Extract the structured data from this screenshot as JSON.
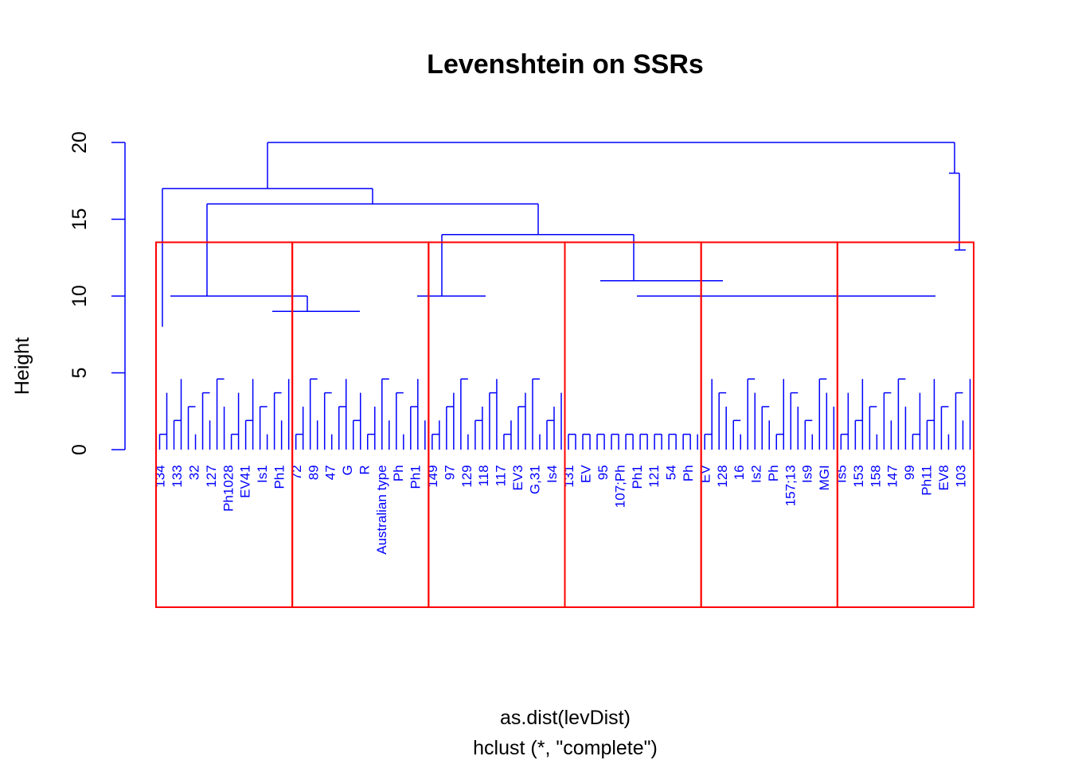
{
  "chart_data": {
    "type": "dendrogram",
    "title": "Levenshtein on SSRs",
    "ylabel": "Height",
    "xlabel": "as.dist(levDist)",
    "sub": "hclust (*, \"complete\")",
    "ylim": [
      0,
      20
    ],
    "yticks": [
      0,
      5,
      10,
      15,
      20
    ],
    "ytick_labels": [
      "0",
      "5",
      "10",
      "15",
      "20"
    ],
    "line_color": "#0000ff",
    "rect_color": "#ff0000",
    "cut_height": 13.5,
    "merges": [
      {
        "id": "root",
        "h": 20,
        "from": 1,
        "to": 7
      },
      {
        "id": "L1",
        "h": 17,
        "from": 1,
        "to": 2
      },
      {
        "id": "R1",
        "h": 18,
        "from": 7,
        "to": 7
      },
      {
        "id": "M1",
        "h": 16,
        "from": 2,
        "to": 3
      },
      {
        "id": "M2",
        "h": 14,
        "from": 3,
        "to": 4
      },
      {
        "id": "M3",
        "h": 10,
        "from": 2,
        "to": 3
      },
      {
        "id": "M4",
        "h": 11,
        "from": 4,
        "to": 5
      },
      {
        "id": "M5",
        "h": 10,
        "from": 3,
        "to": 4
      }
    ],
    "clusters": [
      {
        "name": "c1",
        "from": 1,
        "to": 2
      },
      {
        "name": "c2",
        "from": 2,
        "to": 3
      },
      {
        "name": "c3",
        "from": 3,
        "to": 4
      },
      {
        "name": "c4",
        "from": 4,
        "to": 5
      },
      {
        "name": "c5",
        "from": 5,
        "to": 6
      },
      {
        "name": "c6",
        "from": 6,
        "to": 7
      }
    ],
    "leaf_labels": [
      "134",
      "133",
      "32",
      "127",
      "Ph1028",
      "EV41",
      "Is1",
      "Ph1",
      "72",
      "89",
      "47",
      "G",
      "R",
      "Australian type",
      "Ph",
      "Ph1",
      "149",
      "97",
      "129",
      "118",
      "117",
      "EV3",
      "G,31",
      "Is4",
      "131",
      "EV",
      "95",
      "107;Ph",
      "Ph1",
      "121",
      "54",
      "Ph",
      "EV",
      "128",
      "16",
      "Is2",
      "Ph",
      "157;13",
      "Is9",
      "MGI",
      "Is5",
      "153",
      "158",
      "147",
      "99",
      "Ph11",
      "EV8",
      "103"
    ]
  }
}
